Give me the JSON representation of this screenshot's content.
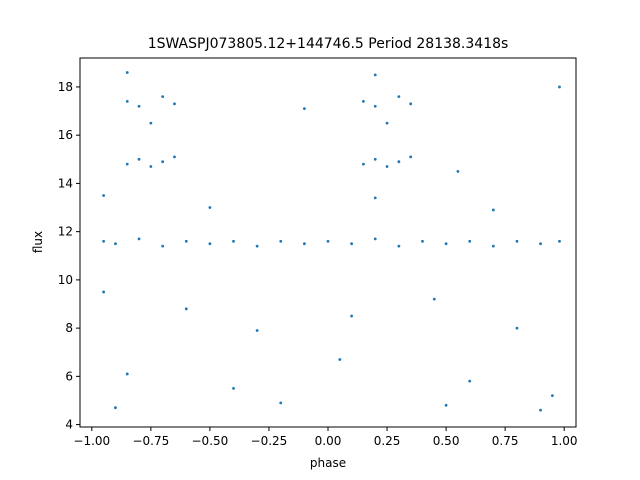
{
  "chart_data": {
    "type": "scatter",
    "title": "1SWASPJ073805.12+144746.5 Period 28138.3418s",
    "xlabel": "phase",
    "ylabel": "flux",
    "xlim": [
      -1.05,
      1.05
    ],
    "ylim": [
      3.9,
      19.2
    ],
    "x_ticks": [
      -1.0,
      -0.75,
      -0.5,
      -0.25,
      0.0,
      0.25,
      0.5,
      0.75,
      1.0
    ],
    "x_tick_labels": [
      "−1.00",
      "−0.75",
      "−0.50",
      "−0.25",
      "0.00",
      "0.25",
      "0.50",
      "0.75",
      "1.00"
    ],
    "y_ticks": [
      4,
      6,
      8,
      10,
      12,
      14,
      16,
      18
    ],
    "y_tick_labels": [
      "4",
      "6",
      "8",
      "10",
      "12",
      "14",
      "16",
      "18"
    ],
    "grid": false,
    "legend": "none",
    "marker_color": "#1f77b4",
    "series": [
      {
        "points": [
          [
            -0.95,
            11.6
          ],
          [
            -0.9,
            11.5
          ],
          [
            -0.8,
            11.7
          ],
          [
            -0.7,
            11.4
          ],
          [
            -0.6,
            11.6
          ],
          [
            -0.5,
            11.5
          ],
          [
            -0.4,
            11.6
          ],
          [
            -0.3,
            11.4
          ],
          [
            -0.2,
            11.6
          ],
          [
            -0.1,
            11.5
          ],
          [
            0.0,
            11.6
          ],
          [
            0.1,
            11.5
          ],
          [
            0.2,
            11.7
          ],
          [
            0.3,
            11.4
          ],
          [
            0.4,
            11.6
          ],
          [
            0.5,
            11.5
          ],
          [
            0.6,
            11.6
          ],
          [
            0.7,
            11.4
          ],
          [
            0.8,
            11.6
          ],
          [
            0.9,
            11.5
          ],
          [
            0.98,
            11.6
          ],
          [
            -0.85,
            17.4
          ],
          [
            -0.8,
            17.2
          ],
          [
            -0.75,
            16.5
          ],
          [
            -0.7,
            17.6
          ],
          [
            -0.65,
            17.3
          ],
          [
            -0.85,
            14.8
          ],
          [
            -0.8,
            15.0
          ],
          [
            -0.75,
            14.7
          ],
          [
            -0.7,
            14.9
          ],
          [
            -0.65,
            15.1
          ],
          [
            0.15,
            17.4
          ],
          [
            0.2,
            17.2
          ],
          [
            0.25,
            16.5
          ],
          [
            0.3,
            17.6
          ],
          [
            0.35,
            17.3
          ],
          [
            0.15,
            14.8
          ],
          [
            0.2,
            15.0
          ],
          [
            0.25,
            14.7
          ],
          [
            0.3,
            14.9
          ],
          [
            0.35,
            15.1
          ],
          [
            -0.95,
            9.5
          ],
          [
            -0.6,
            8.8
          ],
          [
            -0.3,
            7.9
          ],
          [
            0.1,
            8.5
          ],
          [
            0.45,
            9.2
          ],
          [
            0.8,
            8.0
          ],
          [
            -0.85,
            6.1
          ],
          [
            -0.4,
            5.5
          ],
          [
            0.05,
            6.7
          ],
          [
            0.6,
            5.8
          ],
          [
            0.95,
            5.2
          ],
          [
            -0.9,
            4.7
          ],
          [
            -0.2,
            4.9
          ],
          [
            0.5,
            4.8
          ],
          [
            0.9,
            4.6
          ],
          [
            -0.95,
            13.5
          ],
          [
            -0.5,
            13.0
          ],
          [
            0.2,
            13.4
          ],
          [
            0.7,
            12.9
          ],
          [
            -0.85,
            18.6
          ],
          [
            0.2,
            18.5
          ],
          [
            0.98,
            18.0
          ],
          [
            -0.1,
            17.1
          ],
          [
            0.55,
            14.5
          ]
        ]
      }
    ]
  }
}
